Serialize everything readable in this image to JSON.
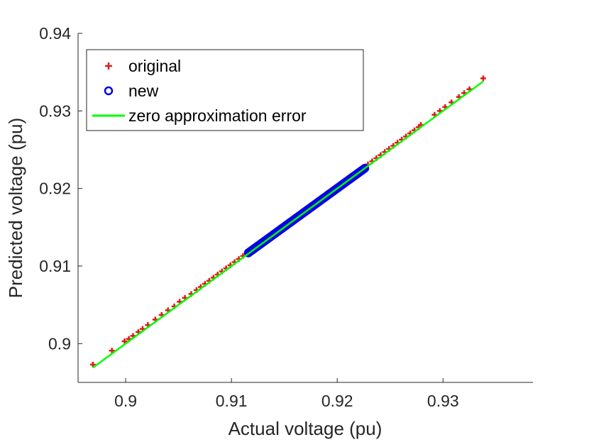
{
  "chart_data": {
    "type": "scatter",
    "title": "",
    "xlabel": "Actual voltage (pu)",
    "ylabel": "Predicted voltage (pu)",
    "xlim": [
      0.8955,
      0.9385
    ],
    "ylim": [
      0.895,
      0.94
    ],
    "xticks": [
      0.9,
      0.91,
      0.92,
      0.93
    ],
    "xtick_labels": [
      "0.9",
      "0.91",
      "0.92",
      "0.93"
    ],
    "yticks": [
      0.9,
      0.91,
      0.92,
      0.93,
      0.94
    ],
    "ytick_labels": [
      "0.9",
      "0.91",
      "0.92",
      "0.93",
      "0.94"
    ],
    "grid": false,
    "legend": "top-left",
    "series": [
      {
        "name": "original",
        "marker": "plus",
        "color": "#e41a1a",
        "points": [
          [
            0.8969,
            0.8973
          ],
          [
            0.8987,
            0.8991
          ],
          [
            0.8999,
            0.9003
          ],
          [
            0.9003,
            0.9006
          ],
          [
            0.9007,
            0.901
          ],
          [
            0.9012,
            0.9015
          ],
          [
            0.9016,
            0.9019
          ],
          [
            0.9021,
            0.9024
          ],
          [
            0.9028,
            0.9031
          ],
          [
            0.9034,
            0.9037
          ],
          [
            0.904,
            0.9043
          ],
          [
            0.9046,
            0.9048
          ],
          [
            0.9051,
            0.9054
          ],
          [
            0.9056,
            0.9059
          ],
          [
            0.9062,
            0.9064
          ],
          [
            0.9067,
            0.9069
          ],
          [
            0.9071,
            0.9073
          ],
          [
            0.9075,
            0.9077
          ],
          [
            0.9079,
            0.9081
          ],
          [
            0.9083,
            0.9085
          ],
          [
            0.9087,
            0.9089
          ],
          [
            0.9091,
            0.9093
          ],
          [
            0.9095,
            0.9097
          ],
          [
            0.9099,
            0.9101
          ],
          [
            0.9103,
            0.9105
          ],
          [
            0.9107,
            0.9109
          ],
          [
            0.9111,
            0.9113
          ],
          [
            0.9115,
            0.9117
          ],
          [
            0.9229,
            0.9231
          ],
          [
            0.9233,
            0.9235
          ],
          [
            0.9237,
            0.9239
          ],
          [
            0.9241,
            0.9243
          ],
          [
            0.9245,
            0.9247
          ],
          [
            0.9249,
            0.9251
          ],
          [
            0.9253,
            0.9255
          ],
          [
            0.9257,
            0.9259
          ],
          [
            0.9261,
            0.9263
          ],
          [
            0.9265,
            0.9267
          ],
          [
            0.9269,
            0.9271
          ],
          [
            0.9273,
            0.9275
          ],
          [
            0.9277,
            0.9279
          ],
          [
            0.9279,
            0.9282
          ],
          [
            0.9292,
            0.9295
          ],
          [
            0.9297,
            0.93
          ],
          [
            0.9302,
            0.9305
          ],
          [
            0.9308,
            0.9311
          ],
          [
            0.9315,
            0.9318
          ],
          [
            0.932,
            0.9323
          ],
          [
            0.9325,
            0.9328
          ],
          [
            0.9338,
            0.9342
          ]
        ]
      },
      {
        "name": "new",
        "marker": "circle",
        "color": "#0000e6",
        "x_range": [
          0.9116,
          0.9226
        ],
        "y_range": [
          0.9117,
          0.9226
        ]
      },
      {
        "name": "zero approximation error",
        "marker": "line",
        "color": "#00ff00",
        "points": [
          [
            0.8969,
            0.8969
          ],
          [
            0.9338,
            0.9338
          ]
        ]
      }
    ]
  }
}
